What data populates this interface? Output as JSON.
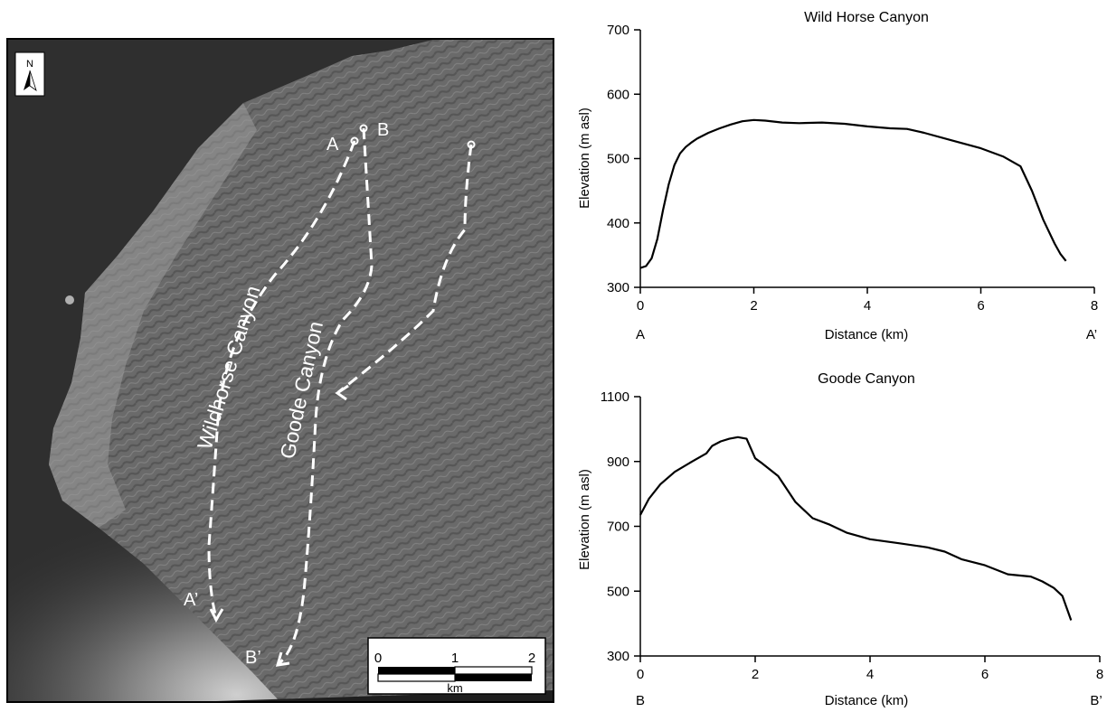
{
  "map": {
    "north_label": "N",
    "canyon_labels": {
      "wildhorse": "Wildhorse Canyon",
      "goode": "Goode Canyon"
    },
    "point_labels": {
      "a": "A",
      "b": "B",
      "a_prime": "A’",
      "b_prime": "B’"
    },
    "scale_bar": {
      "ticks": [
        "0",
        "1",
        "2"
      ],
      "unit": "km"
    },
    "colors": {
      "sea": "#2f2f2f",
      "land": "#6e6e6e",
      "route": "#ffffff"
    }
  },
  "chart_data": [
    {
      "type": "line",
      "title": "Wild Horse Canyon",
      "xlabel": "Distance (km)",
      "ylabel": "Elevation (m asl)",
      "xlim": [
        0,
        8
      ],
      "ylim": [
        300,
        700
      ],
      "xticks": [
        "0",
        "2",
        "4",
        "6",
        "8"
      ],
      "yticks": [
        "300",
        "400",
        "500",
        "600",
        "700"
      ],
      "start_label": "A",
      "end_label": "A’",
      "x": [
        0,
        0.1,
        0.2,
        0.3,
        0.4,
        0.5,
        0.6,
        0.7,
        0.8,
        0.9,
        1.0,
        1.2,
        1.4,
        1.6,
        1.8,
        2.0,
        2.2,
        2.5,
        2.8,
        3.2,
        3.6,
        4.0,
        4.4,
        4.7,
        5.0,
        5.5,
        6.0,
        6.4,
        6.7,
        6.9,
        7.1,
        7.3,
        7.4,
        7.5
      ],
      "y": [
        330,
        333,
        345,
        375,
        420,
        460,
        490,
        508,
        518,
        525,
        531,
        540,
        547,
        553,
        558,
        560,
        559,
        556,
        555,
        556,
        554,
        550,
        547,
        546,
        540,
        528,
        516,
        503,
        488,
        450,
        405,
        368,
        352,
        341
      ]
    },
    {
      "type": "line",
      "title": "Goode Canyon",
      "xlabel": "Distance (km)",
      "ylabel": "Elevation (m asl)",
      "xlim": [
        0,
        8
      ],
      "ylim": [
        300,
        1100
      ],
      "xticks": [
        "0",
        "2",
        "4",
        "6",
        "8"
      ],
      "yticks": [
        "300",
        "500",
        "700",
        "900",
        "1100"
      ],
      "start_label": "B",
      "end_label": "B’",
      "x": [
        0,
        0.15,
        0.35,
        0.6,
        0.9,
        1.15,
        1.25,
        1.4,
        1.55,
        1.7,
        1.85,
        2.0,
        2.1,
        2.4,
        2.7,
        3.0,
        3.3,
        3.6,
        4.0,
        4.5,
        5.0,
        5.3,
        5.6,
        6.0,
        6.4,
        6.8,
        7.0,
        7.2,
        7.35,
        7.5
      ],
      "y": [
        735,
        785,
        830,
        868,
        900,
        925,
        948,
        962,
        970,
        975,
        970,
        910,
        897,
        855,
        775,
        725,
        705,
        680,
        660,
        648,
        635,
        622,
        598,
        580,
        552,
        545,
        530,
        510,
        485,
        410
      ]
    }
  ]
}
